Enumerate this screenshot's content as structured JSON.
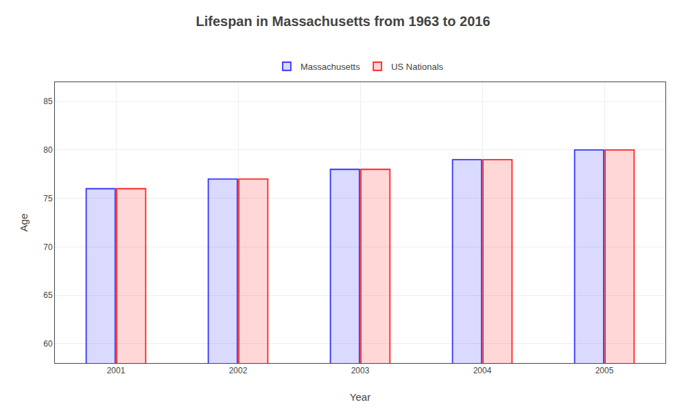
{
  "chart_data": {
    "type": "bar",
    "title": "Lifespan in Massachusetts from 1963 to 2016",
    "x_label": "Year",
    "y_label": "Age",
    "categories": [
      "2001",
      "2002",
      "2003",
      "2004",
      "2005"
    ],
    "series": [
      {
        "name": "Massachusetts",
        "color": "#3333ff",
        "values": [
          76.0,
          77.0,
          78.0,
          79.0,
          80.0
        ]
      },
      {
        "name": "US Nationals",
        "color": "#ff2222",
        "values": [
          76.0,
          77.0,
          78.0,
          79.0,
          80.0
        ]
      }
    ],
    "ylim": [
      58,
      87
    ],
    "yticks": [
      60,
      65,
      70,
      75,
      80,
      85
    ],
    "grid": true,
    "legend": "top"
  }
}
